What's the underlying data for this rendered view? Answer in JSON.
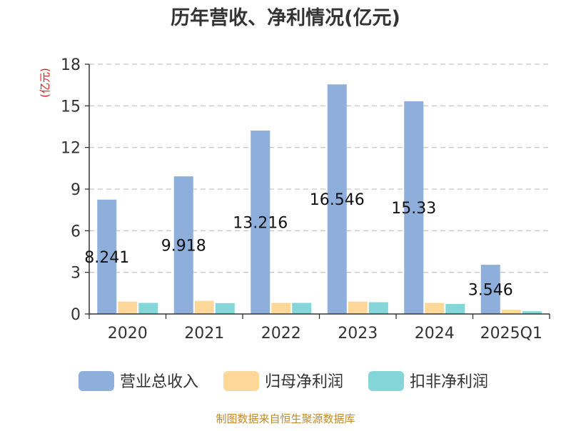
{
  "chart_data": {
    "type": "bar",
    "title": "历年营收、净利情况(亿元)",
    "ylabel": "(亿元)",
    "xlabel": "",
    "categories": [
      "2020",
      "2021",
      "2022",
      "2023",
      "2024",
      "2025Q1"
    ],
    "series": [
      {
        "name": "营业总收入",
        "color": "#8eaedc",
        "values": [
          8.241,
          9.918,
          13.216,
          16.546,
          15.33,
          3.546
        ],
        "show_labels": true
      },
      {
        "name": "归母净利润",
        "color": "#fdd89a",
        "values": [
          0.9,
          0.95,
          0.8,
          0.9,
          0.8,
          0.3
        ],
        "show_labels": false
      },
      {
        "name": "扣非净利润",
        "color": "#84d6d8",
        "values": [
          0.8,
          0.78,
          0.8,
          0.85,
          0.72,
          0.2
        ],
        "show_labels": false
      }
    ],
    "ylim": [
      0,
      18
    ],
    "yticks": [
      0,
      3,
      6,
      9,
      12,
      15,
      18
    ],
    "grid": true,
    "legend_position": "bottom",
    "value_label_color": "#111111"
  },
  "source_note": "制图数据来自恒生聚源数据库",
  "colors": {
    "title": "#333333",
    "ylabel": "#e02020",
    "source": "#c08a2a",
    "axis": "#333333",
    "grid": "#c8c8c8"
  }
}
